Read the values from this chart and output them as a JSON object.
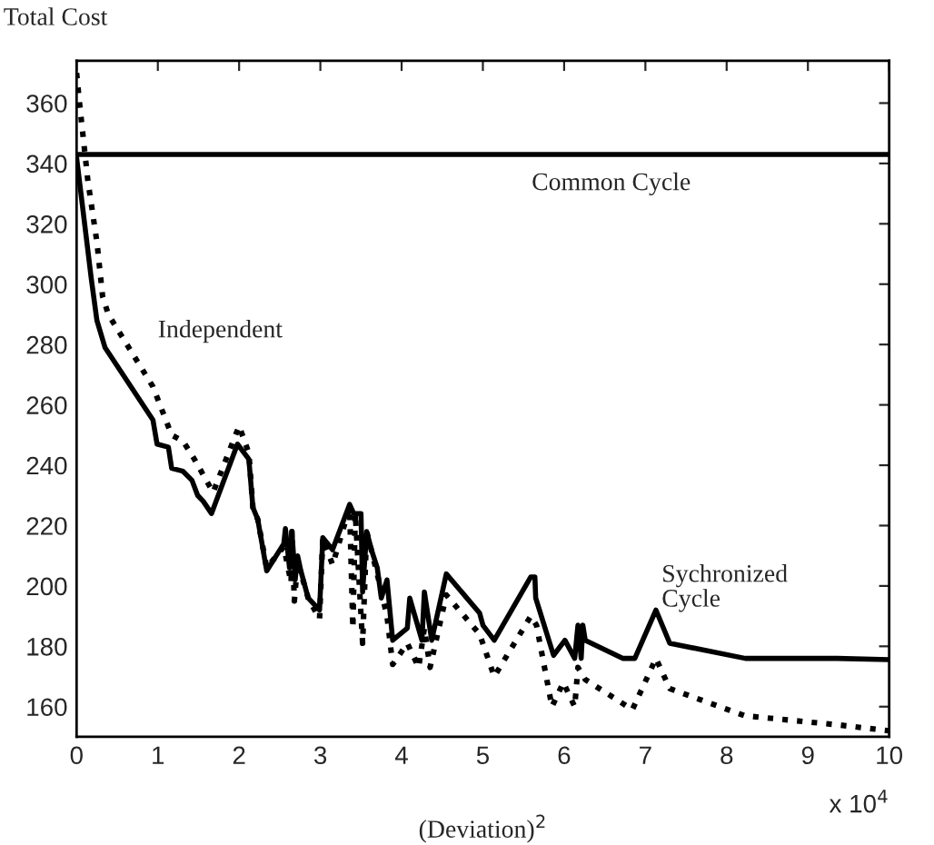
{
  "chart_data": {
    "type": "line",
    "ylabel": "Total Cost",
    "xlabel": "(Deviation)$^{2}$",
    "xlim": [
      0,
      10
    ],
    "xticks": [
      0,
      1,
      2,
      3,
      4,
      5,
      6,
      7,
      8,
      9,
      10
    ],
    "ylim": [
      150,
      374
    ],
    "yticks": [
      160,
      180,
      200,
      220,
      240,
      260,
      280,
      300,
      320,
      340,
      360
    ],
    "grid": false,
    "legend": false,
    "annotations": [
      "x 10$^{4}$"
    ],
    "ref_lines": [
      {
        "axis": "y",
        "value": 343,
        "label": "Common Cycle",
        "color": "#000000",
        "line_style": "solid"
      }
    ],
    "series": [
      {
        "name": "Sychronized\nCycle",
        "color": "#000000",
        "line_style": "solid",
        "x": [
          0,
          0.18,
          0.25,
          0.35,
          0.94,
          0.99,
          1.13,
          1.17,
          1.31,
          1.42,
          1.49,
          1.56,
          1.66,
          1.98,
          2.12,
          2.17,
          2.23,
          2.34,
          2.55,
          2.57,
          2.62,
          2.65,
          2.69,
          2.72,
          2.76,
          2.85,
          2.99,
          3.03,
          3.15,
          3.36,
          3.41,
          3.5,
          3.52,
          3.57,
          3.64,
          3.7,
          3.75,
          3.82,
          3.89,
          4.07,
          4.1,
          4.25,
          4.28,
          4.37,
          4.55,
          4.96,
          5.0,
          5.14,
          5.59,
          5.64,
          5.65,
          5.87,
          6.01,
          6.13,
          6.17,
          6.21,
          6.23,
          6.26,
          6.72,
          6.87,
          7.13,
          7.3,
          8.23,
          9.36,
          10.0
        ],
        "values": [
          342,
          302,
          288,
          279,
          255,
          247,
          246,
          239,
          238,
          235,
          230,
          228,
          224,
          247,
          242,
          226,
          222,
          205,
          214,
          219,
          206,
          218,
          202,
          210,
          205,
          196,
          192,
          216,
          212,
          227,
          224,
          224,
          198,
          218,
          211,
          206,
          196,
          202,
          182,
          186,
          196,
          182,
          198,
          182,
          204,
          191,
          187,
          182,
          203,
          203,
          196,
          177,
          182,
          176,
          187,
          176,
          187,
          182,
          176,
          176,
          192,
          181,
          176,
          176,
          175.6
        ]
      },
      {
        "name": "Independent",
        "color": "#000000",
        "line_style": "dotted",
        "x": [
          0,
          0.04,
          0.14,
          0.25,
          0.32,
          0.39,
          0.94,
          1.17,
          1.31,
          1.45,
          1.68,
          2.0,
          2.12,
          2.17,
          2.23,
          2.34,
          2.55,
          2.64,
          2.65,
          2.68,
          2.72,
          2.85,
          2.99,
          3.03,
          3.15,
          3.36,
          3.4,
          3.43,
          3.52,
          3.57,
          3.7,
          3.82,
          3.89,
          4.07,
          4.21,
          4.28,
          4.35,
          4.55,
          4.96,
          5.14,
          5.59,
          5.66,
          5.85,
          5.99,
          6.13,
          6.17,
          6.26,
          6.84,
          7.13,
          7.3,
          8.22,
          9.36,
          10.0
        ],
        "values": [
          370,
          359,
          334,
          314,
          296,
          290,
          266,
          250,
          248,
          242,
          231,
          253,
          244,
          226,
          222,
          206,
          213,
          201,
          218,
          195,
          208,
          196,
          189,
          216,
          207,
          226,
          186,
          224,
          181,
          218,
          204,
          190,
          174,
          181,
          173,
          186,
          173,
          197,
          184,
          170,
          190,
          187,
          160,
          168,
          160,
          173,
          169,
          159,
          176,
          166,
          157,
          154,
          152
        ]
      }
    ]
  }
}
